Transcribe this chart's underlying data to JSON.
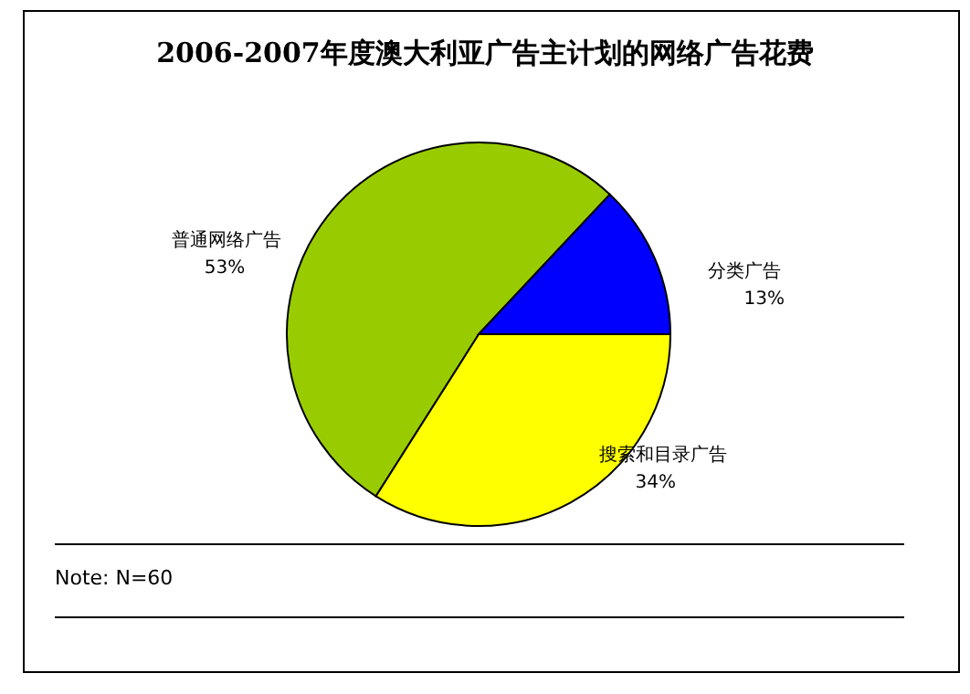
{
  "chart_data": {
    "type": "pie",
    "title": "2006-2007年度澳大利亚广告主计划的网络广告花费",
    "categories": [
      "搜索和目录广告",
      "普通网络广告",
      "分类广告"
    ],
    "values": [
      34,
      53,
      13
    ],
    "colors": [
      "#ffff00",
      "#99cc00",
      "#0000ff"
    ],
    "value_labels": [
      "34%",
      "53%",
      "13%"
    ],
    "annotations": [
      "Note: N=60"
    ]
  }
}
